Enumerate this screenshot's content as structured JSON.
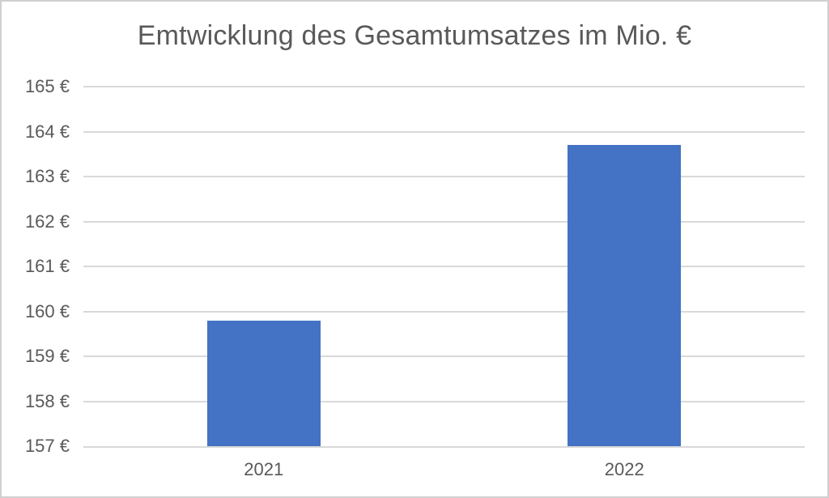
{
  "chart_data": {
    "type": "bar",
    "title": "Emtwicklung des Gesamtumsatzes im Mio. €",
    "categories": [
      "2021",
      "2022"
    ],
    "values": [
      159.8,
      163.7
    ],
    "xlabel": "",
    "ylabel": "",
    "ylim": [
      157,
      165
    ],
    "ytick_step": 1,
    "ytick_suffix": " €",
    "ytick_labels": [
      "157 €",
      "158 €",
      "159 €",
      "160 €",
      "161 €",
      "162 €",
      "163 €",
      "164 €",
      "165 €"
    ],
    "grid": true,
    "legend_position": "none"
  },
  "colors": {
    "bar": "#4472C4",
    "gridline": "#D9D9D9",
    "axis_line": "#D9D9D9",
    "title_text": "#595959",
    "tick_text": "#595959",
    "border": "#CFCFCF",
    "background": "#FFFFFF"
  }
}
